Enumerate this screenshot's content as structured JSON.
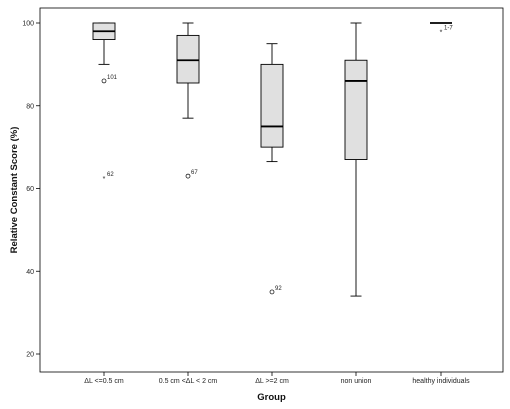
{
  "chart_data": {
    "type": "boxplot",
    "title": "",
    "xlabel": "Group",
    "ylabel": "Relative Constant Score (%)",
    "ylim": [
      15,
      103
    ],
    "yticks": [
      20,
      40,
      60,
      80,
      100
    ],
    "grid": false,
    "box_color": "#e0e0e0",
    "categories": [
      "ΔL <=0.5 cm",
      "0.5 cm <ΔL < 2 cm",
      "ΔL >=2 cm",
      "non union",
      "healthy individuals"
    ],
    "boxes": [
      {
        "whisker_low": 90,
        "q1": 96,
        "median": 98,
        "q3": 100,
        "whisker_high": 100
      },
      {
        "whisker_low": 77,
        "q1": 85.5,
        "median": 91,
        "q3": 97,
        "whisker_high": 100
      },
      {
        "whisker_low": 66.5,
        "q1": 70,
        "median": 75,
        "q3": 90,
        "whisker_high": 95
      },
      {
        "whisker_low": 34,
        "q1": 67,
        "median": 86,
        "q3": 91,
        "whisker_high": 100
      },
      {
        "whisker_low": 100,
        "q1": 100,
        "median": 100,
        "q3": 100,
        "whisker_high": 100
      }
    ],
    "outliers": [
      {
        "category": 0,
        "value": 86,
        "marker": "circle",
        "label": "101"
      },
      {
        "category": 0,
        "value": 62.5,
        "marker": "star",
        "label": "62"
      },
      {
        "category": 1,
        "value": 63,
        "marker": "circle",
        "label": "67"
      },
      {
        "category": 2,
        "value": 35,
        "marker": "circle",
        "label": "92"
      },
      {
        "category": 4,
        "value": 98,
        "marker": "star",
        "label": "1-7"
      }
    ]
  }
}
